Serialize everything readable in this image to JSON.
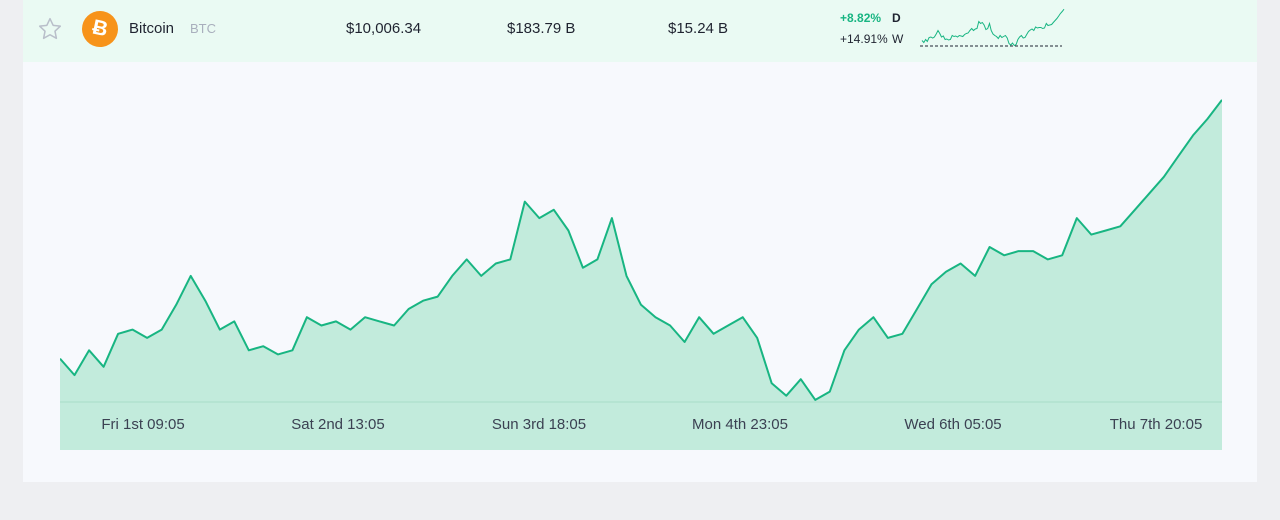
{
  "coin": {
    "name": "Bitcoin",
    "symbol": "BTC",
    "logo_glyph": "Ƀ",
    "logo_color": "#f7931a",
    "price": "$10,006.34",
    "market_cap": "$183.79 B",
    "volume": "$15.24 B",
    "change_day": "+8.82%",
    "change_day_label": "D",
    "change_week": "+14.91%",
    "change_week_label": "W"
  },
  "icons": {
    "favorite": "star-outline-icon"
  },
  "colors": {
    "accent": "#18b582",
    "fill": "#c2ebdc",
    "row_bg": "#eafaf3",
    "card_bg": "#f7f9fd"
  },
  "chart_data": {
    "type": "area",
    "x_labels": [
      "Fri 1st 09:05",
      "Sat 2nd 13:05",
      "Sun 3rd 18:05",
      "Mon 4th 23:05",
      "Wed 6th 05:05",
      "Thu 7th 20:05"
    ],
    "values": [
      9380,
      9340,
      9400,
      9360,
      9440,
      9450,
      9430,
      9450,
      9510,
      9580,
      9520,
      9450,
      9470,
      9400,
      9410,
      9390,
      9400,
      9480,
      9460,
      9470,
      9450,
      9480,
      9470,
      9460,
      9500,
      9520,
      9530,
      9580,
      9620,
      9580,
      9610,
      9620,
      9760,
      9720,
      9740,
      9690,
      9600,
      9620,
      9720,
      9580,
      9510,
      9480,
      9460,
      9420,
      9480,
      9440,
      9460,
      9480,
      9430,
      9320,
      9290,
      9330,
      9280,
      9300,
      9400,
      9450,
      9480,
      9430,
      9440,
      9500,
      9560,
      9590,
      9610,
      9580,
      9650,
      9630,
      9640,
      9640,
      9620,
      9630,
      9720,
      9680,
      9690,
      9700,
      9740,
      9780,
      9820,
      9870,
      9920,
      9960,
      10006
    ],
    "ylim": [
      9270,
      10030
    ]
  }
}
